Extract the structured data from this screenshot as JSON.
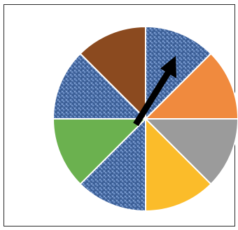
{
  "spinner": {
    "sector_count": 8,
    "sectors": [
      {
        "fill": "blue-textured",
        "color": "#4a6fa8"
      },
      {
        "fill": "solid",
        "color": "#f08a3e"
      },
      {
        "fill": "solid",
        "color": "#9b9b9b"
      },
      {
        "fill": "solid",
        "color": "#fbbc2a"
      },
      {
        "fill": "blue-textured",
        "color": "#4a6fa8"
      },
      {
        "fill": "solid",
        "color": "#6bb14f"
      },
      {
        "fill": "blue-textured",
        "color": "#4a6fa8"
      },
      {
        "fill": "solid",
        "color": "#8b4a1f"
      }
    ],
    "divider_color": "#ffffff",
    "arrow_color": "#000000",
    "arrow_icon": "arrow-icon"
  }
}
